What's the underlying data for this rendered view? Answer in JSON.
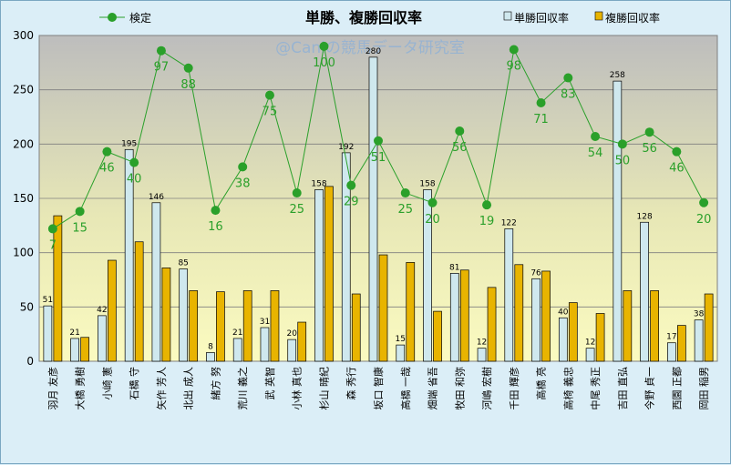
{
  "chart_data": {
    "type": "bar+line",
    "title": "単勝、複勝回収率",
    "watermark": "@Caniの競馬データ研究室",
    "ylim": [
      0,
      300
    ],
    "yticks": [
      0,
      50,
      100,
      150,
      200,
      250,
      300
    ],
    "categories": [
      "羽月 友彦",
      "大橋 勇樹",
      "小崎 憲",
      "石橋 守",
      "矢作 芳人",
      "北出 成人",
      "緒方 努",
      "荒川 義之",
      "武 英智",
      "小林 真也",
      "杉山 晴紀",
      "森 秀行",
      "坂口 智康",
      "高橋 一哉",
      "畑端 省吾",
      "牧田 和弥",
      "河嶋 宏樹",
      "千田 輝彦",
      "高橋 亮",
      "高椅 義忠",
      "中尾 秀正",
      "吉田 直弘",
      "今野 貞一",
      "西園 正都",
      "岡田 稲男"
    ],
    "series": [
      {
        "name": "単勝回収率",
        "color": "#cfe8ee",
        "values": [
          51,
          21,
          42,
          195,
          146,
          85,
          8,
          21,
          31,
          20,
          158,
          192,
          280,
          15,
          158,
          81,
          12,
          122,
          76,
          40,
          12,
          258,
          128,
          17,
          38
        ]
      },
      {
        "name": "複勝回収率",
        "color": "#e8b400",
        "values": [
          134,
          22,
          93,
          110,
          86,
          65,
          64,
          65,
          65,
          36,
          161,
          62,
          98,
          91,
          46,
          84,
          68,
          89,
          83,
          54,
          44,
          65,
          65,
          33,
          62
        ]
      },
      {
        "name": "検定",
        "color": "#2aa02a",
        "type": "line",
        "values": [
          122,
          138,
          193,
          183,
          286,
          270,
          139,
          179,
          245,
          155,
          290,
          162,
          203,
          155,
          146,
          212,
          144,
          287,
          238,
          261,
          207,
          200,
          211,
          193,
          146
        ],
        "point_labels": [
          "7",
          "15",
          "46",
          "40",
          "97",
          "88",
          "16",
          "38",
          "75",
          "25",
          "100",
          "29",
          "51",
          "25",
          "20",
          "56",
          "19",
          "98",
          "71",
          "83",
          "54",
          "50",
          "56",
          "46",
          "20"
        ]
      }
    ],
    "legend_position": "top"
  }
}
